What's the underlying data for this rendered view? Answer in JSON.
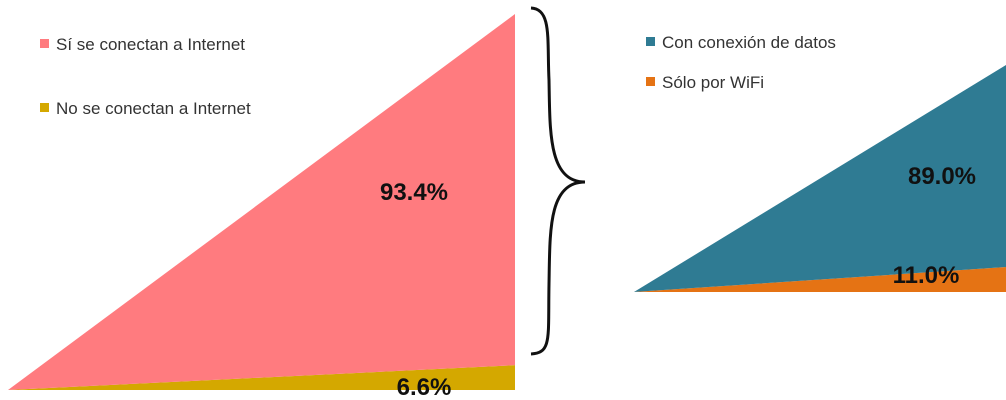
{
  "chart_data": [
    {
      "type": "area",
      "title": "",
      "categories": [
        "Sí se conectan a Internet",
        "No se conectan a Internet"
      ],
      "series": [
        {
          "name": "Sí se conectan a Internet",
          "value": 93.4,
          "label": "93.4%",
          "color": "#ff7b7f"
        },
        {
          "name": "No se conectan a Internet",
          "value": 6.6,
          "label": "6.6%",
          "color": "#d4a800"
        }
      ],
      "legend": "top-left",
      "grid": false
    },
    {
      "type": "area",
      "title": "",
      "categories": [
        "Con conexión de datos",
        "Sólo por WiFi"
      ],
      "series": [
        {
          "name": "Con conexión de datos",
          "value": 89.0,
          "label": "89.0%",
          "color": "#2f7b93"
        },
        {
          "name": "Sólo por WiFi",
          "value": 11.0,
          "label": "11.0%",
          "color": "#e57314"
        }
      ],
      "legend": "top-left",
      "grid": false
    }
  ],
  "connector": {
    "type": "brace",
    "color": "#111111"
  }
}
